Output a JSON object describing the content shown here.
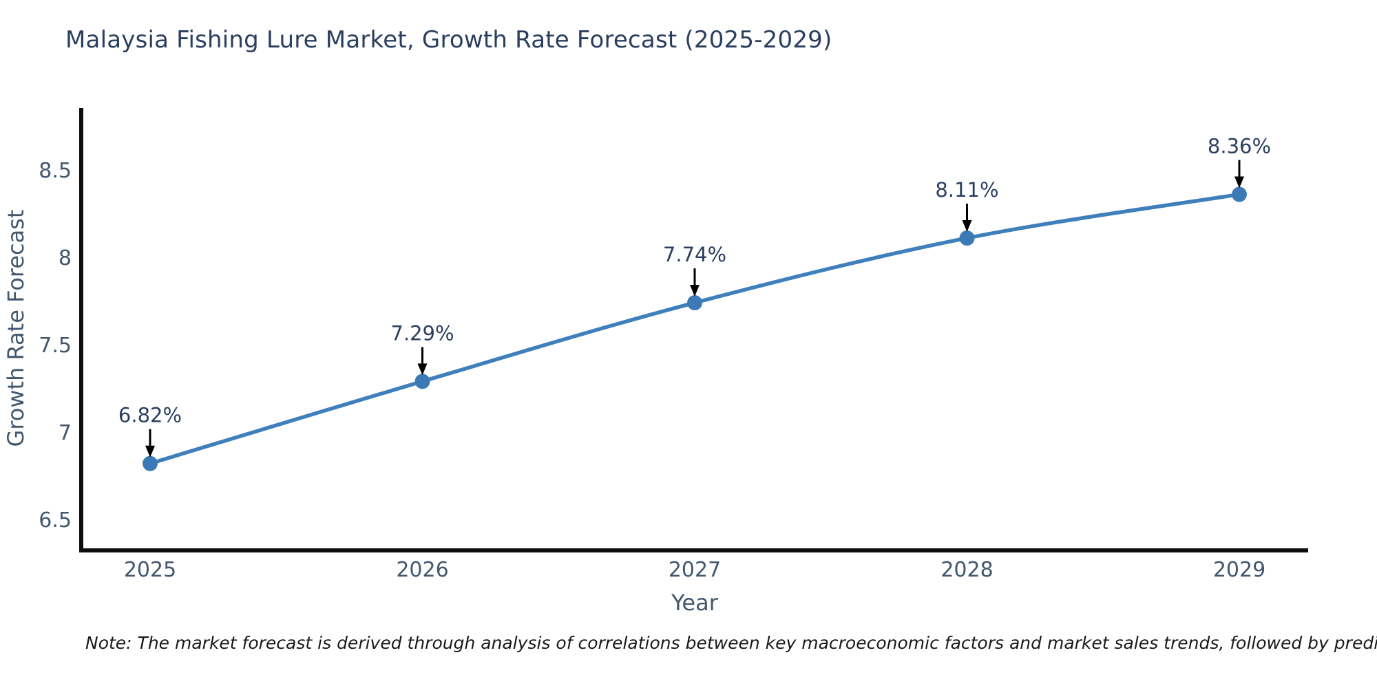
{
  "title": "Malaysia Fishing Lure Market, Growth Rate Forecast (2025-2029)",
  "note": "Note: The market forecast is derived through analysis of correlations between key macroeconomic factors and market sales trends, followed by predictive modeling to project future sales",
  "colors": {
    "line": "#3e7fbc",
    "marker": "#3c7ab6",
    "axis": "#0d0d0d",
    "title_text": "#2a3f5f",
    "tick_text": "#42586e",
    "axis_title_text": "#42586e",
    "point_label_text": "#2a3f5f",
    "arrow": "#000000",
    "note_text": "#1a1a1a",
    "background": "#ffffff"
  },
  "chart_data": {
    "type": "line",
    "title": "Malaysia Fishing Lure Market, Growth Rate Forecast (2025-2029)",
    "x": [
      2025,
      2026,
      2027,
      2028,
      2029
    ],
    "x_tick_labels": [
      "2025",
      "2026",
      "2027",
      "2028",
      "2029"
    ],
    "values": [
      6.82,
      7.29,
      7.74,
      8.11,
      8.36
    ],
    "point_labels": [
      "6.82%",
      "7.29%",
      "7.74%",
      "8.11%",
      "8.36%"
    ],
    "xlabel": "Year",
    "ylabel": "Growth Rate Forecast",
    "yticks": [
      6.5,
      7,
      7.5,
      8,
      8.5
    ],
    "ytick_labels": [
      "6.5",
      "7",
      "7.5",
      "8",
      "8.5"
    ],
    "ylim": [
      6.32,
      9.03
    ],
    "xlim_years": [
      2024.75,
      2029.25
    ],
    "grid": false,
    "legend_position": "none",
    "annotations": "value labels with downward arrows above each data point",
    "marker_style": "filled circle",
    "line_shape": "spline"
  }
}
